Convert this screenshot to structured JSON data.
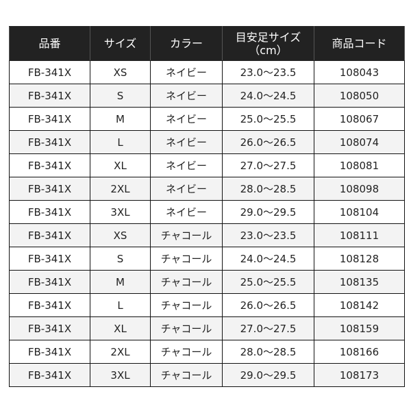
{
  "headers": [
    "品番",
    "サイズ",
    "カラー",
    "目安足サイズ",
    "（cm）",
    "商品コード"
  ],
  "rows": [
    [
      "FB-341X",
      "XS",
      "ネイビー",
      "23.0〜23.5",
      "108043"
    ],
    [
      "FB-341X",
      "S",
      "ネイビー",
      "24.0〜24.5",
      "108050"
    ],
    [
      "FB-341X",
      "M",
      "ネイビー",
      "25.0〜25.5",
      "108067"
    ],
    [
      "FB-341X",
      "L",
      "ネイビー",
      "26.0〜26.5",
      "108074"
    ],
    [
      "FB-341X",
      "XL",
      "ネイビー",
      "27.0〜27.5",
      "108081"
    ],
    [
      "FB-341X",
      "2XL",
      "ネイビー",
      "28.0〜28.5",
      "108098"
    ],
    [
      "FB-341X",
      "3XL",
      "ネイビー",
      "29.0〜29.5",
      "108104"
    ],
    [
      "FB-341X",
      "XS",
      "チャコール",
      "23.0〜23.5",
      "108111"
    ],
    [
      "FB-341X",
      "S",
      "チャコール",
      "24.0〜24.5",
      "108128"
    ],
    [
      "FB-341X",
      "M",
      "チャコール",
      "25.0〜25.5",
      "108135"
    ],
    [
      "FB-341X",
      "L",
      "チャコール",
      "26.0〜26.5",
      "108142"
    ],
    [
      "FB-341X",
      "XL",
      "チャコール",
      "27.0〜27.5",
      "108159"
    ],
    [
      "FB-341X",
      "2XL",
      "チャコール",
      "28.0〜28.5",
      "108166"
    ],
    [
      "FB-341X",
      "3XL",
      "チャコール",
      "29.0〜29.5",
      "108173"
    ]
  ],
  "colors": {
    "header_bg": "#222222",
    "alt_row_bg": "#f3f3f3"
  }
}
